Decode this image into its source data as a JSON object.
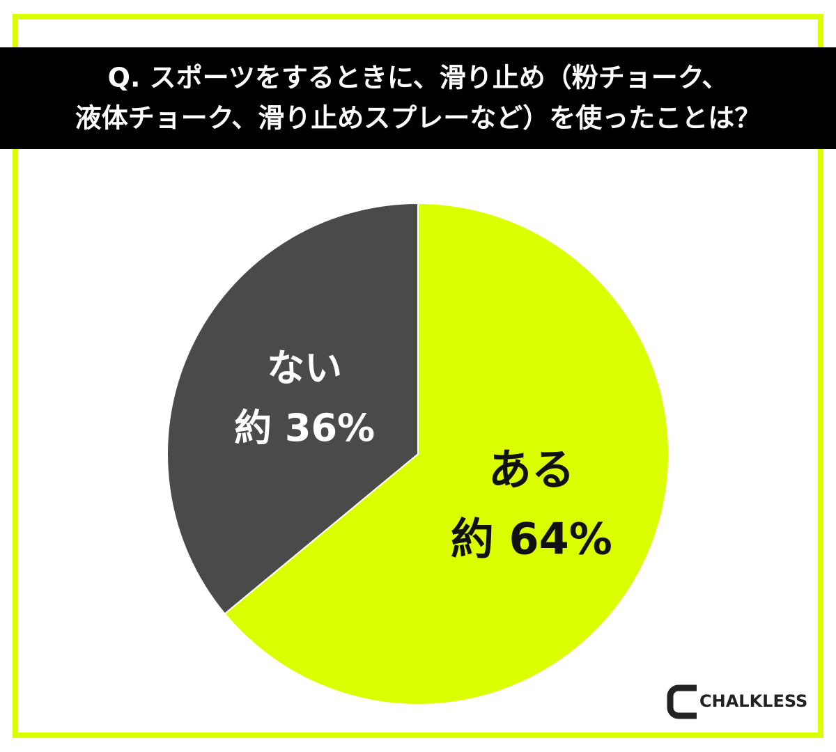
{
  "chart_data": {
    "type": "pie",
    "title": [
      "Q. スポーツをするときに、滑り止め（粉チョーク、",
      "液体チョーク、滑り止めスプレーなど）を使ったことは？"
    ],
    "categories": [
      "ある",
      "ない"
    ],
    "values": [
      64,
      36
    ],
    "value_labels": [
      "約 64%",
      "約 36%"
    ],
    "colors": [
      "#dcff00",
      "#4a4a4a"
    ],
    "label_colors": [
      "#111111",
      "#ffffff"
    ],
    "brand": "CHALKLESS"
  }
}
